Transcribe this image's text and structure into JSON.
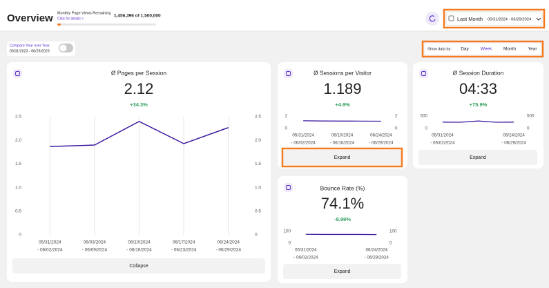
{
  "header": {
    "title": "Overview",
    "quota_label": "Monthly Page Views Remaining",
    "quota_link": "Click for details >",
    "quota_text": "1,456,396 of 1,500,000"
  },
  "date_picker": {
    "preset": "Last Month",
    "range": "05/31/2024 - 06/29/2024"
  },
  "compare": {
    "label": "Compare Year over Year",
    "range": "05/31/2023 - 06/29/2023"
  },
  "show_data_by": {
    "label": "Show data by:",
    "options": [
      "Day",
      "Week",
      "Month",
      "Year"
    ],
    "selected": "Week"
  },
  "chart_data": [
    {
      "type": "line",
      "title": "Ø Pages per Session",
      "value": "2.12",
      "change": "+34.3%",
      "button": "Collapse",
      "color": "#3c1aa0",
      "grid": true,
      "categories": [
        [
          "05/31/2024",
          "- 06/02/2024"
        ],
        [
          "06/03/2024",
          "- 06/09/2024"
        ],
        [
          "06/10/2024",
          "- 06/16/2024"
        ],
        [
          "06/17/2024",
          "- 06/23/2024"
        ],
        [
          "06/24/2024",
          "- 06/29/2024"
        ]
      ],
      "values": [
        1.87,
        1.9,
        2.4,
        1.93,
        2.27
      ],
      "ylim": [
        0,
        2.5
      ],
      "yticks": [
        0,
        0.5,
        {
          "value": 1,
          "label": "1.0"
        },
        1.5,
        {
          "value": 2,
          "label": "2.0"
        },
        2.5
      ]
    },
    {
      "type": "line",
      "title": "Ø Sessions per Visitor",
      "value": "1.189",
      "change": "+4.9%",
      "button": "Expand",
      "color": "#3c1aa0",
      "grid": false,
      "categories": [
        [
          "05/31/2024",
          "- 06/02/2024"
        ],
        null,
        [
          "06/10/2024",
          "- 06/16/2024"
        ],
        null,
        [
          "06/24/2024",
          "- 06/29/2024"
        ]
      ],
      "values": [
        1.24,
        1.2,
        1.19,
        1.18,
        1.17
      ],
      "ylim": [
        0,
        2
      ],
      "yticks": [
        0,
        2
      ]
    },
    {
      "type": "line",
      "title": "Ø Session Duration",
      "value": "04:33",
      "change": "+75.9%",
      "button": "Expand",
      "color": "#3c1aa0",
      "grid": false,
      "categories": [
        [
          "05/31/2024",
          "- 06/02/2024"
        ],
        null,
        null,
        null,
        [
          "06/24/2024",
          "- 06/29/2024"
        ]
      ],
      "values": [
        255,
        250,
        300,
        250,
        255
      ],
      "ylim": [
        0,
        500
      ],
      "yticks": [
        0,
        500
      ]
    },
    {
      "type": "line",
      "title": "Bounce Rate (%)",
      "value": "74.1%",
      "change": "-8.99%",
      "button": "Expand",
      "color": "#3c1aa0",
      "grid": false,
      "categories": [
        [
          "05/31/2024",
          "- 06/02/2024"
        ],
        null,
        null,
        null,
        [
          "06/24/2024",
          "- 06/29/2024"
        ]
      ],
      "values": [
        75,
        74,
        74,
        74,
        73
      ],
      "ylim": [
        0,
        100
      ],
      "yticks": [
        0,
        100
      ]
    }
  ]
}
